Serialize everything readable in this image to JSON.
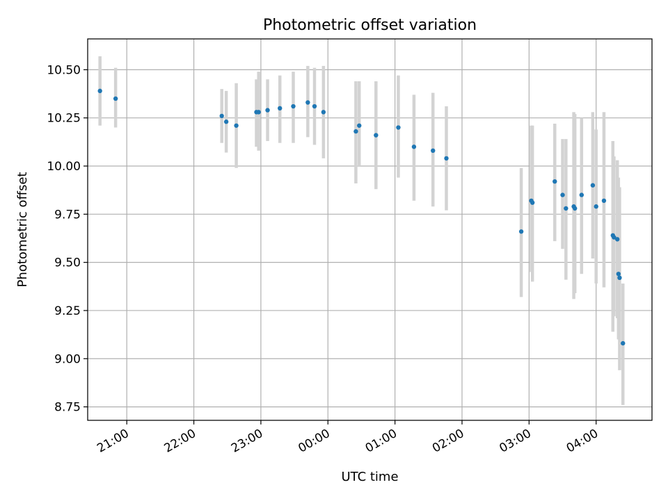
{
  "chart_data": {
    "type": "scatter",
    "title": "Photometric offset variation",
    "xlabel": "UTC time",
    "ylabel": "Photometric offset",
    "grid": true,
    "x_is_time": true,
    "x_range": [
      "20:25",
      "04:50"
    ],
    "ylim": [
      8.68,
      10.66
    ],
    "x_ticks": [
      "21:00",
      "22:00",
      "23:00",
      "00:00",
      "01:00",
      "02:00",
      "03:00",
      "04:00"
    ],
    "y_ticks": [
      "8.75",
      "9.00",
      "9.25",
      "9.50",
      "9.75",
      "10.00",
      "10.25",
      "10.50"
    ],
    "colors": {
      "points": "#1f77b4",
      "error_bars": "#d3d3d3",
      "grid": "#b0b0b0"
    },
    "points": [
      {
        "t": "20:36",
        "y": 10.39,
        "lo": 10.21,
        "hi": 10.57
      },
      {
        "t": "20:50",
        "y": 10.35,
        "lo": 10.2,
        "hi": 10.51
      },
      {
        "t": "22:25",
        "y": 10.26,
        "lo": 10.12,
        "hi": 10.4
      },
      {
        "t": "22:29",
        "y": 10.23,
        "lo": 10.07,
        "hi": 10.39
      },
      {
        "t": "22:38",
        "y": 10.21,
        "lo": 9.99,
        "hi": 10.43
      },
      {
        "t": "22:56",
        "y": 10.28,
        "lo": 10.1,
        "hi": 10.45
      },
      {
        "t": "22:58",
        "y": 10.28,
        "lo": 10.08,
        "hi": 10.49
      },
      {
        "t": "23:06",
        "y": 10.29,
        "lo": 10.13,
        "hi": 10.45
      },
      {
        "t": "23:17",
        "y": 10.3,
        "lo": 10.12,
        "hi": 10.47
      },
      {
        "t": "23:29",
        "y": 10.31,
        "lo": 10.12,
        "hi": 10.49
      },
      {
        "t": "23:42",
        "y": 10.33,
        "lo": 10.15,
        "hi": 10.52
      },
      {
        "t": "23:48",
        "y": 10.31,
        "lo": 10.11,
        "hi": 10.51
      },
      {
        "t": "23:56",
        "y": 10.28,
        "lo": 10.04,
        "hi": 10.52
      },
      {
        "t": "00:25",
        "y": 10.18,
        "lo": 9.91,
        "hi": 10.44
      },
      {
        "t": "00:28",
        "y": 10.21,
        "lo": 10.0,
        "hi": 10.44
      },
      {
        "t": "00:43",
        "y": 10.16,
        "lo": 9.88,
        "hi": 10.44
      },
      {
        "t": "01:03",
        "y": 10.2,
        "lo": 9.94,
        "hi": 10.47
      },
      {
        "t": "01:17",
        "y": 10.1,
        "lo": 9.82,
        "hi": 10.37
      },
      {
        "t": "01:34",
        "y": 10.08,
        "lo": 9.79,
        "hi": 10.38
      },
      {
        "t": "01:46",
        "y": 10.04,
        "lo": 9.77,
        "hi": 10.31
      },
      {
        "t": "02:53",
        "y": 9.66,
        "lo": 9.32,
        "hi": 9.99
      },
      {
        "t": "03:02",
        "y": 9.82,
        "lo": 9.45,
        "hi": 10.21
      },
      {
        "t": "03:03",
        "y": 9.81,
        "lo": 9.4,
        "hi": 10.21
      },
      {
        "t": "03:23",
        "y": 9.92,
        "lo": 9.61,
        "hi": 10.22
      },
      {
        "t": "03:30",
        "y": 9.85,
        "lo": 9.57,
        "hi": 10.14
      },
      {
        "t": "03:33",
        "y": 9.78,
        "lo": 9.41,
        "hi": 10.14
      },
      {
        "t": "03:40",
        "y": 9.79,
        "lo": 9.31,
        "hi": 10.28
      },
      {
        "t": "03:41",
        "y": 9.78,
        "lo": 9.34,
        "hi": 10.27
      },
      {
        "t": "03:47",
        "y": 9.85,
        "lo": 9.44,
        "hi": 10.25
      },
      {
        "t": "03:57",
        "y": 9.9,
        "lo": 9.52,
        "hi": 10.28
      },
      {
        "t": "04:00",
        "y": 9.79,
        "lo": 9.39,
        "hi": 10.19
      },
      {
        "t": "04:07",
        "y": 9.82,
        "lo": 9.37,
        "hi": 10.28
      },
      {
        "t": "04:15",
        "y": 9.64,
        "lo": 9.14,
        "hi": 10.13
      },
      {
        "t": "04:16",
        "y": 9.63,
        "lo": 9.22,
        "hi": 10.05
      },
      {
        "t": "04:19",
        "y": 9.62,
        "lo": 9.21,
        "hi": 10.03
      },
      {
        "t": "04:20",
        "y": 9.44,
        "lo": 9.1,
        "hi": 9.94
      },
      {
        "t": "04:21",
        "y": 9.42,
        "lo": 8.94,
        "hi": 9.89
      },
      {
        "t": "04:24",
        "y": 9.08,
        "lo": 8.76,
        "hi": 9.39
      }
    ]
  }
}
